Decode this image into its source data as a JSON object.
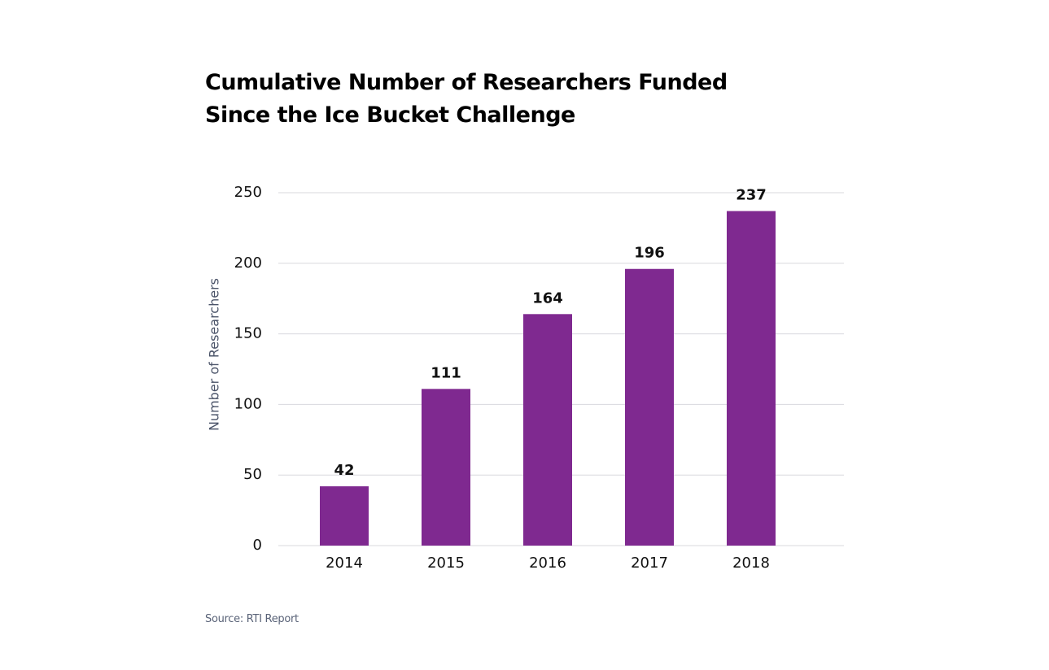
{
  "chart_data": {
    "type": "bar",
    "title": "Cumulative Number of Researchers Funded Since the Ice Bucket Challenge",
    "y_label": "Number of Researchers",
    "categories": [
      "2014",
      "2015",
      "2016",
      "2017",
      "2018"
    ],
    "values": [
      42,
      111,
      164,
      196,
      237
    ],
    "color": "#7f2990",
    "ylim": [
      0,
      250
    ],
    "yticks": [
      0,
      50,
      100,
      150,
      200,
      250
    ],
    "grid": true,
    "source": "Source: RTI Report"
  }
}
